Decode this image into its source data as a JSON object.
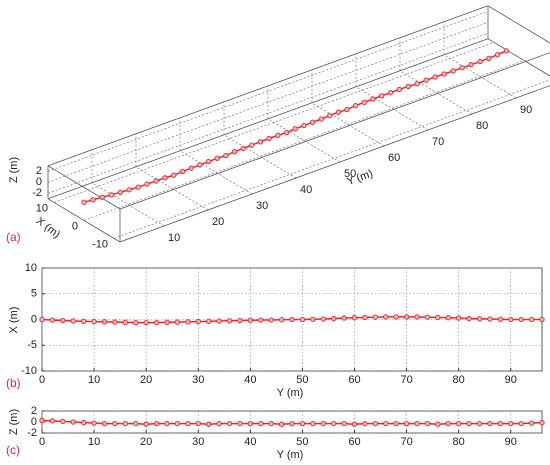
{
  "chart_data": [
    {
      "type": "line3d",
      "panel": "(a)",
      "xlabel": "X (m)",
      "ylabel": "Y (m)",
      "zlabel": "Z (m)",
      "color": "#e8262e",
      "grid": true,
      "xlim": [
        -12,
        12
      ],
      "ylim": [
        0,
        100
      ],
      "zlim": [
        -3,
        3
      ],
      "xticks": [
        -10,
        0,
        10
      ],
      "yticks": [
        10,
        20,
        30,
        40,
        50,
        60,
        70,
        80,
        90
      ],
      "zticks": [
        -2,
        0,
        2
      ],
      "y": [
        0,
        2,
        4,
        6,
        8,
        10,
        12,
        14,
        16,
        18,
        20,
        22,
        24,
        26,
        28,
        30,
        32,
        34,
        36,
        38,
        40,
        42,
        44,
        46,
        48,
        50,
        52,
        54,
        56,
        58,
        60,
        62,
        64,
        66,
        68,
        70,
        72,
        74,
        76,
        78,
        80,
        82,
        84,
        86,
        88,
        90,
        92,
        94,
        96
      ],
      "x": [
        0,
        -0.1,
        -0.2,
        -0.3,
        -0.35,
        -0.4,
        -0.45,
        -0.5,
        -0.55,
        -0.6,
        -0.6,
        -0.6,
        -0.55,
        -0.5,
        -0.45,
        -0.4,
        -0.35,
        -0.3,
        -0.25,
        -0.2,
        -0.15,
        -0.1,
        -0.1,
        -0.05,
        0,
        0,
        0.05,
        0.1,
        0.2,
        0.3,
        0.35,
        0.4,
        0.45,
        0.5,
        0.5,
        0.5,
        0.5,
        0.45,
        0.4,
        0.35,
        0.3,
        0.2,
        0.15,
        0.1,
        0.05,
        0,
        0,
        0,
        0
      ],
      "z": [
        0.3,
        0.2,
        0.1,
        0,
        -0.1,
        -0.2,
        -0.3,
        -0.3,
        -0.3,
        -0.3,
        -0.4,
        -0.3,
        -0.3,
        -0.3,
        -0.3,
        -0.3,
        -0.4,
        -0.3,
        -0.3,
        -0.3,
        -0.3,
        -0.3,
        -0.3,
        -0.4,
        -0.3,
        -0.3,
        -0.3,
        -0.3,
        -0.3,
        -0.3,
        -0.4,
        -0.3,
        -0.3,
        -0.3,
        -0.3,
        -0.3,
        -0.3,
        -0.3,
        -0.4,
        -0.3,
        -0.3,
        -0.3,
        -0.3,
        -0.3,
        -0.3,
        -0.3,
        -0.3,
        -0.2,
        -0.1
      ]
    },
    {
      "type": "line",
      "panel": "(b)",
      "xlabel": "Y (m)",
      "ylabel": "X (m)",
      "color": "#e8262e",
      "grid": true,
      "xlim": [
        0,
        96
      ],
      "ylim": [
        -10,
        10
      ],
      "xticks": [
        0,
        10,
        20,
        30,
        40,
        50,
        60,
        70,
        80,
        90
      ],
      "yticks": [
        -10,
        -5,
        0,
        5,
        10
      ],
      "x": [
        0,
        2,
        4,
        6,
        8,
        10,
        12,
        14,
        16,
        18,
        20,
        22,
        24,
        26,
        28,
        30,
        32,
        34,
        36,
        38,
        40,
        42,
        44,
        46,
        48,
        50,
        52,
        54,
        56,
        58,
        60,
        62,
        64,
        66,
        68,
        70,
        72,
        74,
        76,
        78,
        80,
        82,
        84,
        86,
        88,
        90,
        92,
        94,
        96
      ],
      "values": [
        0,
        -0.1,
        -0.2,
        -0.3,
        -0.35,
        -0.4,
        -0.45,
        -0.5,
        -0.55,
        -0.6,
        -0.6,
        -0.6,
        -0.55,
        -0.5,
        -0.45,
        -0.4,
        -0.35,
        -0.3,
        -0.25,
        -0.2,
        -0.15,
        -0.1,
        -0.1,
        -0.05,
        0,
        0,
        0.05,
        0.1,
        0.2,
        0.3,
        0.35,
        0.4,
        0.45,
        0.5,
        0.5,
        0.5,
        0.5,
        0.45,
        0.4,
        0.35,
        0.3,
        0.2,
        0.15,
        0.1,
        0.05,
        0,
        0,
        0,
        0
      ]
    },
    {
      "type": "line",
      "panel": "(c)",
      "xlabel": "Y (m)",
      "ylabel": "Z (m)",
      "color": "#e8262e",
      "grid": true,
      "xlim": [
        0,
        96
      ],
      "ylim": [
        -2,
        2
      ],
      "xticks": [
        0,
        10,
        20,
        30,
        40,
        50,
        60,
        70,
        80,
        90
      ],
      "yticks": [
        -2,
        0,
        2
      ],
      "x": [
        0,
        2,
        4,
        6,
        8,
        10,
        12,
        14,
        16,
        18,
        20,
        22,
        24,
        26,
        28,
        30,
        32,
        34,
        36,
        38,
        40,
        42,
        44,
        46,
        48,
        50,
        52,
        54,
        56,
        58,
        60,
        62,
        64,
        66,
        68,
        70,
        72,
        74,
        76,
        78,
        80,
        82,
        84,
        86,
        88,
        90,
        92,
        94,
        96
      ],
      "values": [
        0.3,
        0.2,
        0.1,
        0,
        -0.1,
        -0.2,
        -0.3,
        -0.3,
        -0.3,
        -0.3,
        -0.4,
        -0.3,
        -0.3,
        -0.3,
        -0.3,
        -0.3,
        -0.4,
        -0.3,
        -0.3,
        -0.3,
        -0.3,
        -0.3,
        -0.3,
        -0.4,
        -0.3,
        -0.3,
        -0.3,
        -0.3,
        -0.3,
        -0.3,
        -0.4,
        -0.3,
        -0.3,
        -0.3,
        -0.3,
        -0.3,
        -0.3,
        -0.3,
        -0.4,
        -0.3,
        -0.3,
        -0.3,
        -0.3,
        -0.3,
        -0.3,
        -0.3,
        -0.3,
        -0.2,
        -0.1
      ]
    }
  ]
}
